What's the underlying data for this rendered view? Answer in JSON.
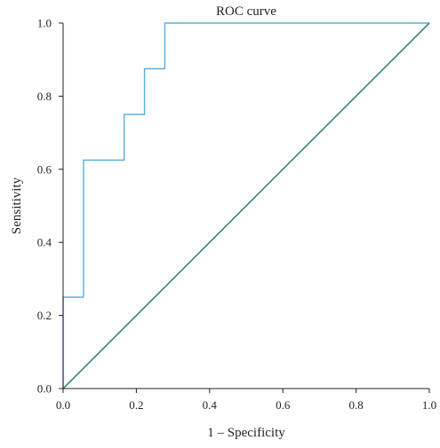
{
  "chart_data": {
    "type": "line",
    "title": "ROC curve",
    "xlabel": "1 – Specificity",
    "ylabel": "Sensitivity",
    "xlim": [
      0,
      1
    ],
    "ylim": [
      0,
      1
    ],
    "xticks": [
      "0.0",
      "0.2",
      "0.4",
      "0.6",
      "0.8",
      "1.0"
    ],
    "yticks": [
      "0.0",
      "0.2",
      "0.4",
      "0.6",
      "0.8",
      "1.0"
    ],
    "grid": false,
    "legend": "none",
    "series": [
      {
        "color": "#5aaee0",
        "step": true,
        "x": [
          0.0,
          0.0,
          0.0556,
          0.0556,
          0.1667,
          0.1667,
          0.2222,
          0.2222,
          0.2778,
          0.2778,
          1.0
        ],
        "y": [
          0.0,
          0.25,
          0.25,
          0.625,
          0.625,
          0.75,
          0.75,
          0.875,
          0.875,
          1.0,
          1.0
        ]
      },
      {
        "color": "#1a7a78",
        "x": [
          0.0,
          1.0
        ],
        "y": [
          0.0,
          1.0
        ]
      }
    ]
  },
  "colors": {
    "axis": "#231f20",
    "text": "#231f20"
  }
}
